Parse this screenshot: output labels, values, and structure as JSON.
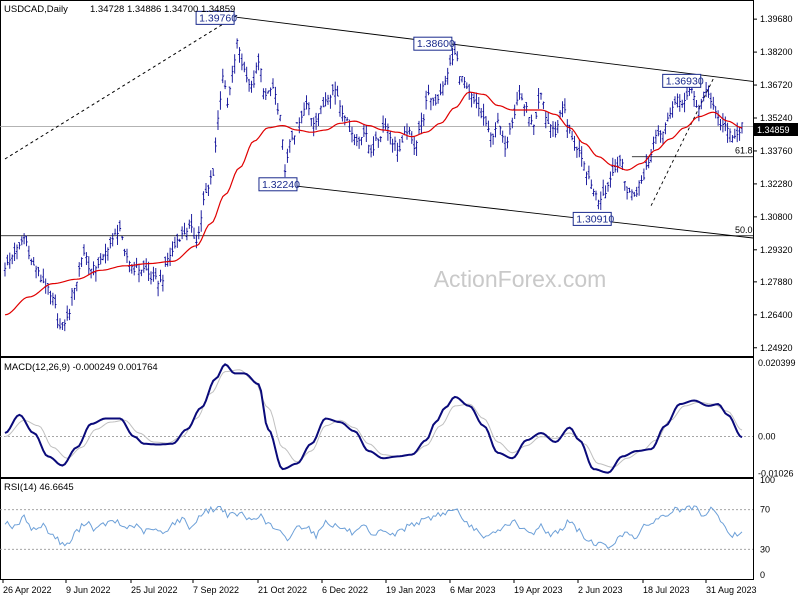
{
  "header": {
    "symbol": "USDCAD,Daily",
    "ohlc": "1.34728 1.34886 1.34700 1.34859"
  },
  "watermark": "ActionForex.com",
  "colors": {
    "candle": "#0a0a96",
    "ma": "#e00000",
    "macd": "#0a0a7a",
    "signal": "#c0c0c0",
    "rsi": "#6da0d8",
    "trend": "#000000",
    "badge_bg": "#000000",
    "badge_fg": "#ffffff",
    "point_box": "#1a2a8c"
  },
  "x_ticks": [
    "26 Apr 2022",
    "9 Jun 2022",
    "25 Jul 2022",
    "7 Sep 2022",
    "21 Oct 2022",
    "6 Dec 2022",
    "19 Jan 2023",
    "6 Mar 2023",
    "19 Apr 2023",
    "2 Jun 2023",
    "18 Jul 2023",
    "31 Aug 2023"
  ],
  "chart_data": [
    {
      "type": "line",
      "panel": "price",
      "series_kind": "ohlc-bars",
      "ylim": [
        1.2455,
        1.4045
      ],
      "y_ticks": [
        "1.39680",
        "1.38200",
        "1.36720",
        "1.35240",
        "1.33760",
        "1.32280",
        "1.30800",
        "1.29320",
        "1.27880",
        "1.26400",
        "1.24920"
      ],
      "last_price": "1.34859",
      "horizontal_levels": [
        {
          "label": "61.8",
          "value": 1.335
        },
        {
          "label": "50.0",
          "value": 1.2995
        }
      ],
      "turning_points": [
        {
          "label": "1.39760",
          "x_index": 97,
          "value": 1.3976
        },
        {
          "label": "1.38600",
          "x_index": 188,
          "value": 1.386
        },
        {
          "label": "1.36930",
          "x_index": 292,
          "value": 1.3693
        },
        {
          "label": "1.32240",
          "x_index": 117,
          "value": 1.3224
        },
        {
          "label": "1.30910",
          "x_index": 250,
          "value": 1.3091
        }
      ],
      "close_anchors": [
        [
          0,
          1.286
        ],
        [
          5,
          1.293
        ],
        [
          8,
          1.2985
        ],
        [
          12,
          1.286
        ],
        [
          16,
          1.279
        ],
        [
          20,
          1.2705
        ],
        [
          23,
          1.258
        ],
        [
          26,
          1.262
        ],
        [
          29,
          1.277
        ],
        [
          33,
          1.292
        ],
        [
          36,
          1.284
        ],
        [
          40,
          1.288
        ],
        [
          44,
          1.296
        ],
        [
          48,
          1.303
        ],
        [
          50,
          1.291
        ],
        [
          54,
          1.285
        ],
        [
          58,
          1.2845
        ],
        [
          62,
          1.28
        ],
        [
          65,
          1.279
        ],
        [
          69,
          1.291
        ],
        [
          73,
          1.299
        ],
        [
          77,
          1.303
        ],
        [
          80,
          1.298
        ],
        [
          84,
          1.318
        ],
        [
          87,
          1.328
        ],
        [
          89,
          1.352
        ],
        [
          91,
          1.372
        ],
        [
          93,
          1.358
        ],
        [
          95,
          1.372
        ],
        [
          97,
          1.386
        ],
        [
          100,
          1.374
        ],
        [
          103,
          1.366
        ],
        [
          106,
          1.377
        ],
        [
          109,
          1.362
        ],
        [
          112,
          1.366
        ],
        [
          115,
          1.352
        ],
        [
          117,
          1.33
        ],
        [
          120,
          1.344
        ],
        [
          123,
          1.35
        ],
        [
          126,
          1.358
        ],
        [
          129,
          1.351
        ],
        [
          132,
          1.356
        ],
        [
          135,
          1.363
        ],
        [
          138,
          1.365
        ],
        [
          141,
          1.356
        ],
        [
          144,
          1.348
        ],
        [
          147,
          1.342
        ],
        [
          150,
          1.346
        ],
        [
          153,
          1.338
        ],
        [
          156,
          1.343
        ],
        [
          159,
          1.35
        ],
        [
          162,
          1.342
        ],
        [
          165,
          1.338
        ],
        [
          168,
          1.347
        ],
        [
          171,
          1.34
        ],
        [
          174,
          1.35
        ],
        [
          177,
          1.362
        ],
        [
          180,
          1.36
        ],
        [
          183,
          1.366
        ],
        [
          186,
          1.376
        ],
        [
          188,
          1.381
        ],
        [
          191,
          1.37
        ],
        [
          194,
          1.363
        ],
        [
          197,
          1.358
        ],
        [
          200,
          1.352
        ],
        [
          203,
          1.344
        ],
        [
          206,
          1.35
        ],
        [
          209,
          1.34
        ],
        [
          212,
          1.352
        ],
        [
          215,
          1.363
        ],
        [
          218,
          1.356
        ],
        [
          221,
          1.348
        ],
        [
          224,
          1.362
        ],
        [
          227,
          1.35
        ],
        [
          230,
          1.346
        ],
        [
          233,
          1.358
        ],
        [
          236,
          1.346
        ],
        [
          239,
          1.338
        ],
        [
          242,
          1.331
        ],
        [
          245,
          1.322
        ],
        [
          248,
          1.316
        ],
        [
          251,
          1.32
        ],
        [
          254,
          1.328
        ],
        [
          257,
          1.334
        ],
        [
          260,
          1.32
        ],
        [
          263,
          1.318
        ],
        [
          266,
          1.324
        ],
        [
          269,
          1.333
        ],
        [
          272,
          1.346
        ],
        [
          275,
          1.346
        ],
        [
          278,
          1.356
        ],
        [
          281,
          1.36
        ],
        [
          284,
          1.36
        ],
        [
          287,
          1.365
        ],
        [
          290,
          1.356
        ],
        [
          293,
          1.366
        ],
        [
          296,
          1.358
        ],
        [
          299,
          1.35
        ],
        [
          302,
          1.347
        ],
        [
          305,
          1.343
        ],
        [
          308,
          1.3486
        ]
      ],
      "ma_anchors": [
        [
          0,
          1.264
        ],
        [
          10,
          1.272
        ],
        [
          20,
          1.278
        ],
        [
          30,
          1.28
        ],
        [
          40,
          1.284
        ],
        [
          50,
          1.286
        ],
        [
          60,
          1.287
        ],
        [
          70,
          1.288
        ],
        [
          80,
          1.295
        ],
        [
          86,
          1.305
        ],
        [
          92,
          1.318
        ],
        [
          98,
          1.33
        ],
        [
          104,
          1.342
        ],
        [
          110,
          1.348
        ],
        [
          116,
          1.349
        ],
        [
          122,
          1.347
        ],
        [
          128,
          1.346
        ],
        [
          134,
          1.347
        ],
        [
          140,
          1.35
        ],
        [
          146,
          1.351
        ],
        [
          152,
          1.349
        ],
        [
          158,
          1.347
        ],
        [
          164,
          1.346
        ],
        [
          170,
          1.344
        ],
        [
          176,
          1.346
        ],
        [
          182,
          1.35
        ],
        [
          188,
          1.357
        ],
        [
          194,
          1.364
        ],
        [
          200,
          1.363
        ],
        [
          206,
          1.358
        ],
        [
          212,
          1.356
        ],
        [
          218,
          1.356
        ],
        [
          224,
          1.356
        ],
        [
          230,
          1.354
        ],
        [
          236,
          1.348
        ],
        [
          242,
          1.341
        ],
        [
          248,
          1.335
        ],
        [
          254,
          1.331
        ],
        [
          260,
          1.329
        ],
        [
          266,
          1.332
        ],
        [
          272,
          1.338
        ],
        [
          278,
          1.343
        ],
        [
          284,
          1.348
        ],
        [
          290,
          1.353
        ],
        [
          296,
          1.355
        ],
        [
          302,
          1.351
        ],
        [
          308,
          1.348
        ]
      ]
    },
    {
      "type": "line",
      "panel": "macd",
      "header": "MACD(12,26,9) -0.000249 0.001764",
      "ylim": [
        -0.0112,
        0.0215
      ],
      "y_ticks": [
        {
          "label": "0.020399",
          "value": 0.020399
        },
        {
          "label": "0.00",
          "value": 0.0
        },
        {
          "label": "-0.01026",
          "value": -0.01026
        }
      ],
      "macd_anchors": [
        [
          0,
          0.001
        ],
        [
          6,
          0.006
        ],
        [
          12,
          0.001
        ],
        [
          18,
          -0.0055
        ],
        [
          24,
          -0.008
        ],
        [
          30,
          -0.003
        ],
        [
          36,
          0.0035
        ],
        [
          42,
          0.005
        ],
        [
          48,
          0.005
        ],
        [
          54,
          0.0
        ],
        [
          58,
          -0.002
        ],
        [
          64,
          -0.0022
        ],
        [
          70,
          -0.002
        ],
        [
          76,
          0.002
        ],
        [
          82,
          0.008
        ],
        [
          88,
          0.016
        ],
        [
          92,
          0.02
        ],
        [
          96,
          0.0175
        ],
        [
          100,
          0.0175
        ],
        [
          106,
          0.0145
        ],
        [
          110,
          0.002
        ],
        [
          116,
          -0.009
        ],
        [
          122,
          -0.0075
        ],
        [
          128,
          -0.002
        ],
        [
          134,
          0.005
        ],
        [
          140,
          0.004
        ],
        [
          146,
          0.0015
        ],
        [
          152,
          -0.004
        ],
        [
          158,
          -0.006
        ],
        [
          164,
          -0.0055
        ],
        [
          170,
          -0.005
        ],
        [
          176,
          -0.001
        ],
        [
          180,
          0.004
        ],
        [
          184,
          0.008
        ],
        [
          188,
          0.011
        ],
        [
          194,
          0.0085
        ],
        [
          200,
          0.003
        ],
        [
          206,
          -0.0045
        ],
        [
          212,
          -0.006
        ],
        [
          218,
          -0.001
        ],
        [
          224,
          0.001
        ],
        [
          230,
          -0.0015
        ],
        [
          236,
          0.0025
        ],
        [
          240,
          -0.001
        ],
        [
          246,
          -0.009
        ],
        [
          252,
          -0.01
        ],
        [
          258,
          -0.0055
        ],
        [
          264,
          -0.004
        ],
        [
          270,
          -0.0035
        ],
        [
          276,
          0.003
        ],
        [
          282,
          0.009
        ],
        [
          288,
          0.01
        ],
        [
          294,
          0.0085
        ],
        [
          298,
          0.009
        ],
        [
          302,
          0.006
        ],
        [
          308,
          -0.0002
        ]
      ],
      "signal_anchors": [
        [
          0,
          0.0
        ],
        [
          8,
          0.0045
        ],
        [
          14,
          0.003
        ],
        [
          20,
          -0.003
        ],
        [
          26,
          -0.006
        ],
        [
          32,
          -0.003
        ],
        [
          38,
          0.002
        ],
        [
          44,
          0.004
        ],
        [
          50,
          0.0045
        ],
        [
          56,
          0.001
        ],
        [
          62,
          -0.0015
        ],
        [
          68,
          -0.0018
        ],
        [
          74,
          0.0
        ],
        [
          80,
          0.005
        ],
        [
          86,
          0.012
        ],
        [
          92,
          0.018
        ],
        [
          98,
          0.0185
        ],
        [
          104,
          0.0155
        ],
        [
          110,
          0.008
        ],
        [
          116,
          -0.003
        ],
        [
          122,
          -0.007
        ],
        [
          128,
          -0.004
        ],
        [
          134,
          0.003
        ],
        [
          140,
          0.0045
        ],
        [
          146,
          0.0025
        ],
        [
          152,
          -0.002
        ],
        [
          158,
          -0.005
        ],
        [
          164,
          -0.0055
        ],
        [
          170,
          -0.005
        ],
        [
          176,
          -0.0025
        ],
        [
          182,
          0.003
        ],
        [
          188,
          0.0085
        ],
        [
          194,
          0.009
        ],
        [
          200,
          0.005
        ],
        [
          206,
          -0.0015
        ],
        [
          212,
          -0.0045
        ],
        [
          218,
          -0.0025
        ],
        [
          224,
          0.0
        ],
        [
          230,
          -0.0005
        ],
        [
          236,
          0.001
        ],
        [
          242,
          -0.002
        ],
        [
          248,
          -0.0075
        ],
        [
          254,
          -0.0085
        ],
        [
          260,
          -0.006
        ],
        [
          266,
          -0.004
        ],
        [
          272,
          -0.001
        ],
        [
          278,
          0.0045
        ],
        [
          284,
          0.0085
        ],
        [
          290,
          0.0095
        ],
        [
          296,
          0.009
        ],
        [
          302,
          0.007
        ],
        [
          308,
          0.0018
        ]
      ]
    },
    {
      "type": "line",
      "panel": "rsi",
      "header": "RSI(14) 46.6645",
      "ylim": [
        0,
        100
      ],
      "y_ticks": [
        "100",
        "70",
        "30",
        "0"
      ],
      "levels": [
        70,
        30
      ],
      "rsi_anchors": [
        [
          0,
          58
        ],
        [
          4,
          52
        ],
        [
          8,
          62
        ],
        [
          12,
          50
        ],
        [
          16,
          54
        ],
        [
          20,
          44
        ],
        [
          24,
          36
        ],
        [
          26,
          34
        ],
        [
          30,
          48
        ],
        [
          34,
          58
        ],
        [
          38,
          50
        ],
        [
          42,
          56
        ],
        [
          46,
          58
        ],
        [
          50,
          52
        ],
        [
          54,
          54
        ],
        [
          58,
          48
        ],
        [
          62,
          50
        ],
        [
          66,
          46
        ],
        [
          70,
          56
        ],
        [
          74,
          60
        ],
        [
          78,
          52
        ],
        [
          82,
          66
        ],
        [
          86,
          70
        ],
        [
          90,
          72
        ],
        [
          94,
          64
        ],
        [
          98,
          66
        ],
        [
          102,
          60
        ],
        [
          106,
          64
        ],
        [
          110,
          56
        ],
        [
          114,
          48
        ],
        [
          118,
          40
        ],
        [
          122,
          52
        ],
        [
          126,
          54
        ],
        [
          130,
          44
        ],
        [
          134,
          58
        ],
        [
          138,
          54
        ],
        [
          142,
          50
        ],
        [
          146,
          46
        ],
        [
          150,
          52
        ],
        [
          154,
          42
        ],
        [
          158,
          50
        ],
        [
          162,
          44
        ],
        [
          166,
          50
        ],
        [
          170,
          56
        ],
        [
          174,
          58
        ],
        [
          178,
          62
        ],
        [
          182,
          66
        ],
        [
          186,
          68
        ],
        [
          188,
          72
        ],
        [
          192,
          56
        ],
        [
          196,
          52
        ],
        [
          200,
          40
        ],
        [
          204,
          46
        ],
        [
          208,
          52
        ],
        [
          212,
          58
        ],
        [
          216,
          50
        ],
        [
          220,
          46
        ],
        [
          224,
          54
        ],
        [
          228,
          44
        ],
        [
          232,
          50
        ],
        [
          236,
          58
        ],
        [
          240,
          48
        ],
        [
          244,
          38
        ],
        [
          248,
          36
        ],
        [
          252,
          32
        ],
        [
          256,
          40
        ],
        [
          260,
          48
        ],
        [
          264,
          42
        ],
        [
          268,
          54
        ],
        [
          272,
          60
        ],
        [
          276,
          64
        ],
        [
          280,
          70
        ],
        [
          284,
          70
        ],
        [
          288,
          72
        ],
        [
          292,
          62
        ],
        [
          296,
          72
        ],
        [
          300,
          54
        ],
        [
          304,
          44
        ],
        [
          308,
          47
        ]
      ]
    }
  ]
}
